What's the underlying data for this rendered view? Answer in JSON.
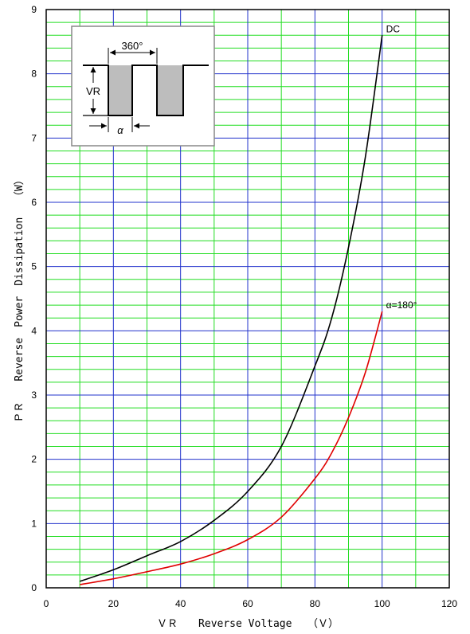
{
  "chart_data": {
    "type": "line",
    "xlabel": "ＶＲ　　Reverse Voltage　　（Ｖ）",
    "ylabel": "ＰＲ　　Reverse　Power　Dissipation　　（W）",
    "xlim": [
      0,
      120
    ],
    "ylim": [
      0,
      9
    ],
    "x_ticks": [
      "0",
      "20",
      "40",
      "60",
      "80",
      "100",
      "120"
    ],
    "y_ticks": [
      "0",
      "1",
      "2",
      "3",
      "4",
      "5",
      "6",
      "7",
      "8",
      "9"
    ],
    "grid": true,
    "series": [
      {
        "name": "DC",
        "color": "#000000",
        "x": [
          10,
          20,
          30,
          40,
          50,
          60,
          70,
          80,
          85,
          90,
          95,
          100
        ],
        "y": [
          0.1,
          0.28,
          0.5,
          0.72,
          1.05,
          1.5,
          2.2,
          3.45,
          4.2,
          5.3,
          6.7,
          8.6
        ]
      },
      {
        "name": "α=180°",
        "color": "#e00000",
        "x": [
          10,
          20,
          30,
          40,
          50,
          60,
          70,
          80,
          85,
          90,
          95,
          100
        ],
        "y": [
          0.05,
          0.14,
          0.25,
          0.37,
          0.53,
          0.75,
          1.1,
          1.7,
          2.1,
          2.65,
          3.35,
          4.3
        ]
      }
    ],
    "inset": {
      "period_label": "360°",
      "vr_label": "VR",
      "alpha_label": "α"
    }
  }
}
